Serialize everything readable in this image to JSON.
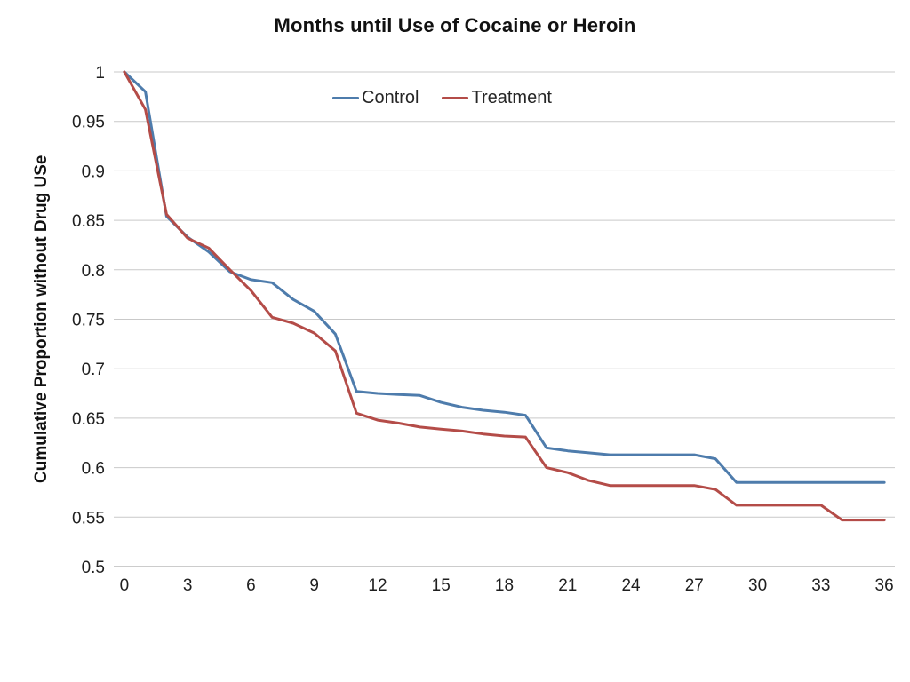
{
  "title": "Months until Use of Cocaine or Heroin",
  "legend": {
    "control_label": "Control",
    "treatment_label": "Treatment"
  },
  "colors": {
    "control_line": "#4E7CAC",
    "treatment_line": "#B44C48",
    "gridline": "#C9C9C9",
    "axis_line": "#9A9A9A",
    "text": "#1F1F1F"
  },
  "chart_data": {
    "type": "line",
    "title": "Months until Use of Cocaine or Heroin",
    "xlabel": "",
    "ylabel": "Cumulative Proportion without Drug USe",
    "ylim": [
      0.5,
      1.0
    ],
    "y_tick_step": 0.05,
    "grid": true,
    "legend_position": "top-center",
    "x": [
      0,
      1,
      2,
      3,
      4,
      5,
      6,
      7,
      8,
      9,
      10,
      11,
      12,
      13,
      14,
      15,
      16,
      17,
      18,
      19,
      20,
      21,
      22,
      23,
      24,
      25,
      26,
      27,
      28,
      29,
      30,
      31,
      32,
      33,
      34,
      35,
      36
    ],
    "x_tick_labels": [
      "0",
      "3",
      "6",
      "9",
      "12",
      "15",
      "18",
      "21",
      "24",
      "27",
      "30",
      "33",
      "36"
    ],
    "y_tick_labels": [
      "1",
      "0.95",
      "0.9",
      "0.85",
      "0.8",
      "0.75",
      "0.7",
      "0.65",
      "0.6",
      "0.55",
      "0.5"
    ],
    "series": [
      {
        "name": "Control",
        "color": "#4E7CAC",
        "values": [
          1.0,
          0.98,
          0.854,
          0.833,
          0.818,
          0.798,
          0.79,
          0.787,
          0.77,
          0.758,
          0.735,
          0.677,
          0.675,
          0.674,
          0.673,
          0.666,
          0.661,
          0.658,
          0.656,
          0.653,
          0.62,
          0.617,
          0.615,
          0.613,
          0.613,
          0.613,
          0.613,
          0.613,
          0.609,
          0.585,
          0.585,
          0.585,
          0.585,
          0.585,
          0.585,
          0.585,
          0.585
        ]
      },
      {
        "name": "Treatment",
        "color": "#B44C48",
        "values": [
          1.0,
          0.962,
          0.856,
          0.832,
          0.822,
          0.8,
          0.779,
          0.752,
          0.746,
          0.736,
          0.718,
          0.655,
          0.648,
          0.645,
          0.641,
          0.639,
          0.637,
          0.634,
          0.632,
          0.631,
          0.6,
          0.595,
          0.587,
          0.582,
          0.582,
          0.582,
          0.582,
          0.582,
          0.578,
          0.562,
          0.562,
          0.562,
          0.562,
          0.562,
          0.547,
          0.547,
          0.547
        ]
      }
    ]
  }
}
